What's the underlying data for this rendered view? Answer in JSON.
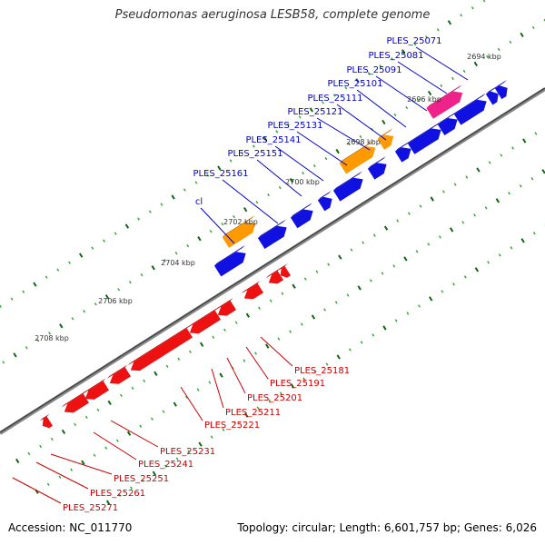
{
  "title": "Pseudomonas aeruginosa LESB58, complete genome",
  "footer": {
    "accession": "Accession: NC_011770",
    "summary": "Topology: circular; Length: 6,601,757 bp; Genes: 6,026"
  },
  "colors": {
    "forward_gene": "#1010e0",
    "reverse_gene": "#ee1111",
    "gene_orange": "#ff9900",
    "gene_pink": "#ee2288",
    "backbone": "#555555",
    "tick_light": "#33aa33",
    "tick_dark": "#116611",
    "forward_label": "#0000cc",
    "reverse_label": "#cc0000"
  },
  "scale_labels": [
    "2694 kbp",
    "2696 kbp",
    "2698 kbp",
    "2700 kbp",
    "2702 kbp",
    "2704 kbp",
    "2706 kbp",
    "2708 kbp"
  ],
  "forward_labels": [
    "PLES_25071",
    "PLES_25081",
    "PLES_25091",
    "PLES_25101",
    "PLES_25111",
    "PLES_25121",
    "PLES_25131",
    "PLES_25141",
    "PLES_25151",
    "PLES_25161",
    "cl"
  ],
  "reverse_labels": [
    "PLES_25181",
    "PLES_25191",
    "PLES_25201",
    "PLES_25211",
    "PLES_25221",
    "PLES_25231",
    "PLES_25241",
    "PLES_25251",
    "PLES_25261",
    "PLES_25271"
  ]
}
